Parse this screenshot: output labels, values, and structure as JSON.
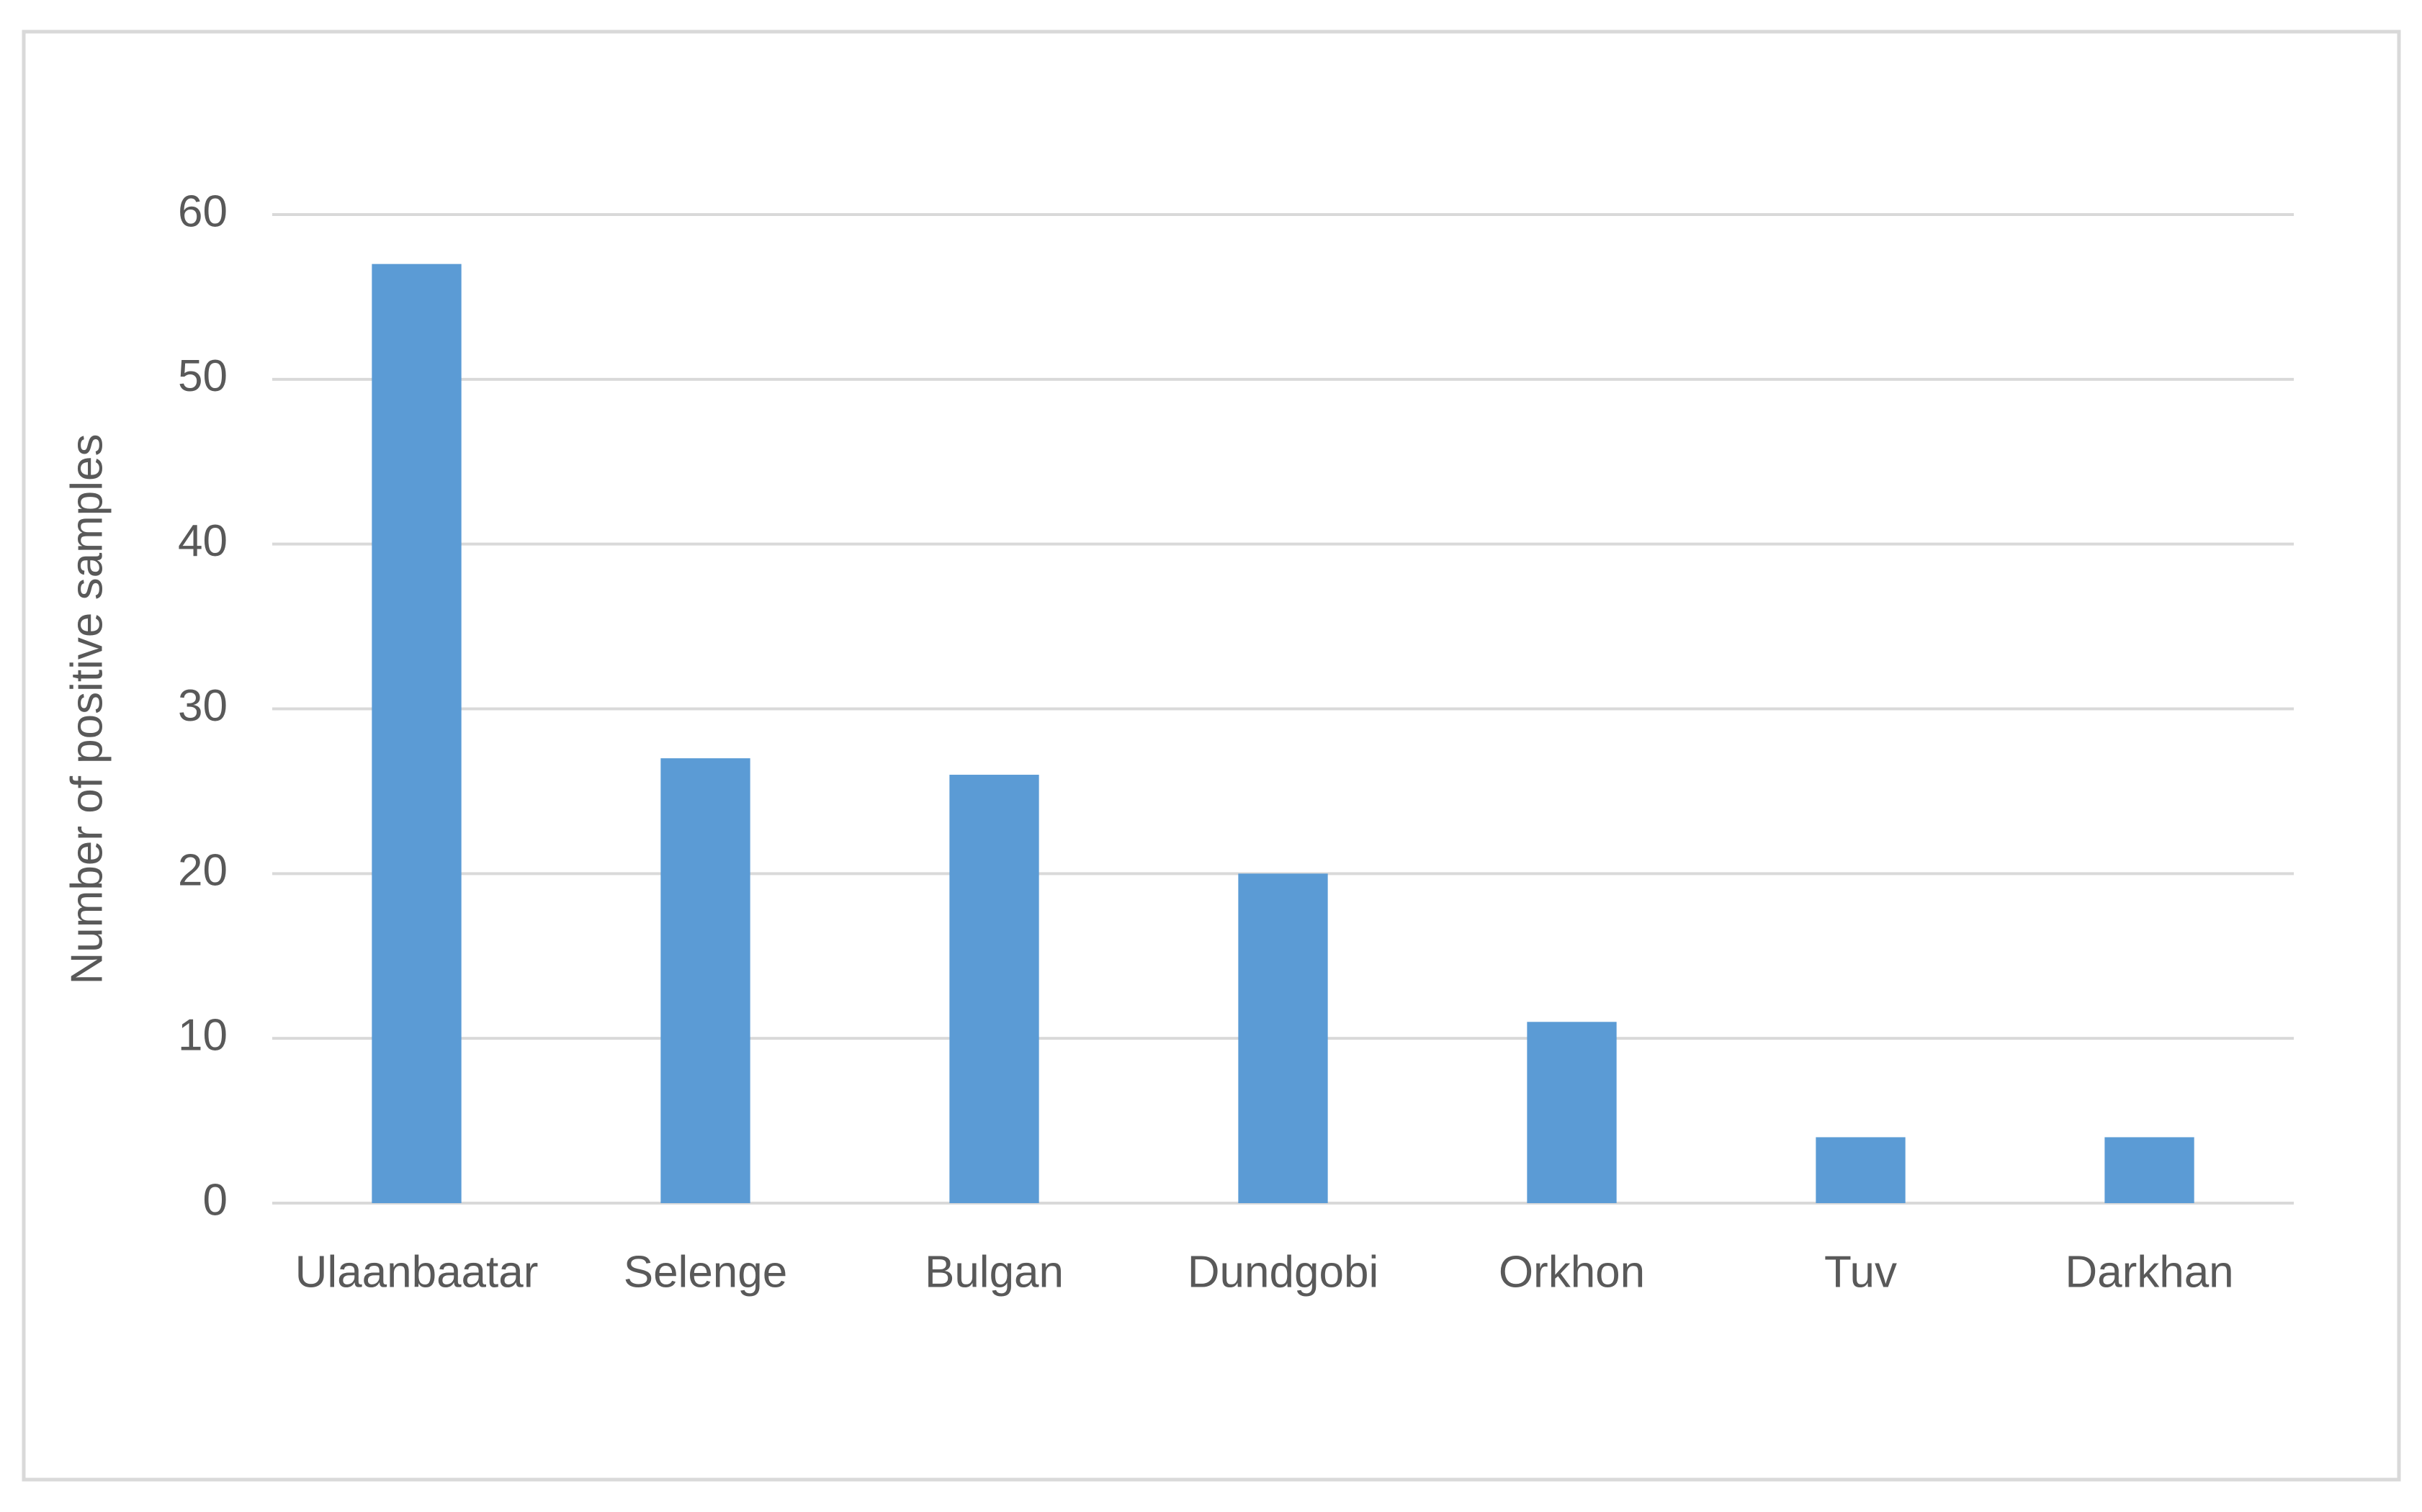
{
  "chart_data": {
    "type": "bar",
    "y_label": "Number of positive samples",
    "categories": [
      "Ulaanbaatar",
      "Selenge",
      "Bulgan",
      "Dundgobi",
      "Orkhon",
      "Tuv",
      "Darkhan"
    ],
    "values": [
      57,
      27,
      26,
      20,
      11,
      4,
      4
    ],
    "color": "#5b9bd5",
    "ylim": [
      0,
      60
    ],
    "yticks": [
      0,
      10,
      20,
      30,
      40,
      50,
      60
    ],
    "grid": true
  }
}
